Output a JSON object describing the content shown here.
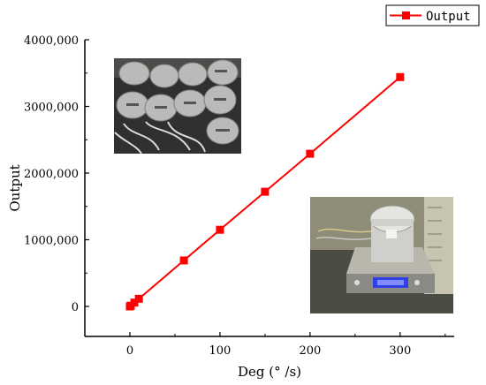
{
  "chart_data": {
    "type": "line",
    "title": "",
    "xlabel": "Deg (° /s)",
    "ylabel": "Output",
    "xlim": [
      -50,
      360
    ],
    "ylim": [
      -450000,
      4000000
    ],
    "x_ticks": [
      0,
      100,
      200,
      300
    ],
    "x_tick_labels": [
      "0",
      "100",
      "200",
      "300"
    ],
    "y_ticks": [
      0,
      1000000,
      2000000,
      3000000,
      4000000
    ],
    "y_tick_labels": [
      "0",
      "1000,000",
      "2000,000",
      "3000,000",
      "4000,000"
    ],
    "grid": false,
    "legend_position": "top-right",
    "series": [
      {
        "name": "Output",
        "color": "#ff0000",
        "marker": "square",
        "x": [
          0,
          1,
          5,
          10,
          60,
          100,
          150,
          200,
          300
        ],
        "y": [
          0,
          11500,
          57500,
          115000,
          690000,
          1150000,
          1720000,
          2290000,
          3440000
        ]
      }
    ]
  },
  "images": [
    {
      "name": "photo-gyroscopes-group"
    },
    {
      "name": "photo-gyroscope-on-scale"
    }
  ]
}
